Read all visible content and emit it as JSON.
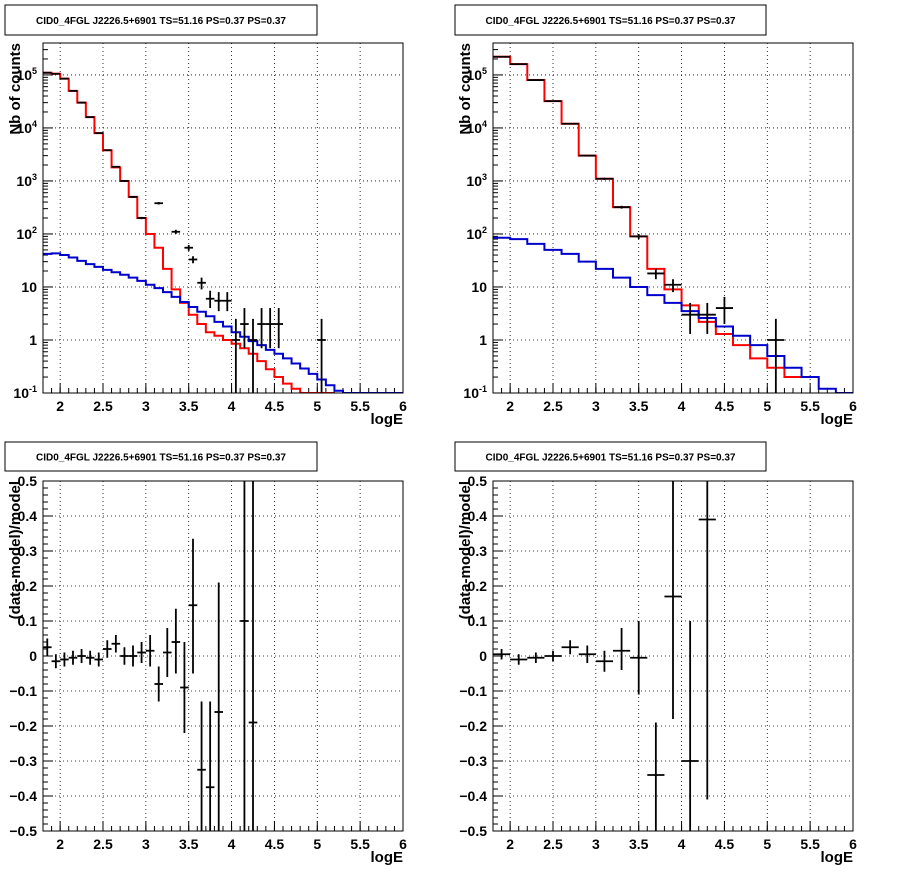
{
  "chart_data": [
    {
      "id": "top-left",
      "type": "histogram",
      "title": "CID0_4FGL J2226.5+6901 TS=51.16 PS=0.37 PS=0.37",
      "xlabel": "logE",
      "ylabel": "Nb of counts",
      "xlim": [
        1.8,
        6.0
      ],
      "ylim": [
        0.1,
        400000
      ],
      "yscale": "log",
      "grid": true,
      "x_ticks": [
        "2",
        "2.5",
        "3",
        "3.5",
        "4",
        "4.5",
        "5",
        "5.5",
        "6"
      ],
      "y_ticks": [
        "10^-1",
        "1",
        "10",
        "10^2",
        "10^3",
        "10^4",
        "10^5"
      ],
      "series": [
        {
          "color": "#ff0000",
          "style": "step",
          "edges": [
            1.8,
            1.9,
            2.0,
            2.1,
            2.2,
            2.3,
            2.4,
            2.5,
            2.6,
            2.7,
            2.8,
            2.9,
            3.0,
            3.1,
            3.2,
            3.3,
            3.4,
            3.5,
            3.6,
            3.7,
            3.8,
            3.9,
            4.0,
            4.1,
            4.2,
            4.3,
            4.4,
            4.5,
            4.6,
            4.7,
            4.8,
            4.9,
            5.0,
            5.1,
            5.2
          ],
          "values": [
            110000,
            105000,
            85000,
            50000,
            30000,
            16000,
            8000,
            3800,
            1800,
            1000,
            500,
            200,
            100,
            55,
            22,
            9,
            5,
            3,
            2,
            1.4,
            1.2,
            1,
            0.85,
            0.7,
            0.55,
            0.4,
            0.28,
            0.2,
            0.15,
            0.12,
            0.1,
            0.1,
            0.1,
            0.1
          ]
        },
        {
          "color": "#0000cc",
          "style": "step",
          "edges": [
            1.8,
            1.9,
            2.0,
            2.1,
            2.2,
            2.3,
            2.4,
            2.5,
            2.6,
            2.7,
            2.8,
            2.9,
            3.0,
            3.1,
            3.2,
            3.3,
            3.4,
            3.5,
            3.6,
            3.7,
            3.8,
            3.9,
            4.0,
            4.1,
            4.2,
            4.3,
            4.4,
            4.5,
            4.6,
            4.7,
            4.8,
            4.9,
            5.0,
            5.1,
            5.2,
            5.3,
            5.4,
            5.5,
            5.6,
            5.7,
            5.8,
            5.9,
            6.0
          ],
          "values": [
            42,
            43,
            40,
            36,
            31,
            27,
            24,
            21,
            19,
            17,
            15,
            13,
            11,
            9.5,
            8,
            6.5,
            5.2,
            4.2,
            3.4,
            2.8,
            2.2,
            1.8,
            1.4,
            1.15,
            0.95,
            0.8,
            0.65,
            0.55,
            0.45,
            0.36,
            0.29,
            0.23,
            0.18,
            0.14,
            0.11,
            0.1,
            0.1,
            0.1,
            0.1,
            0.1,
            0.1,
            0.1
          ]
        }
      ],
      "points": [
        {
          "x": 1.85,
          "y": 110000,
          "hw": 0.05,
          "ylo": 109000,
          "yhi": 111000
        },
        {
          "x": 1.95,
          "y": 105000,
          "hw": 0.05,
          "ylo": 104000,
          "yhi": 106000
        },
        {
          "x": 2.05,
          "y": 85000,
          "hw": 0.05,
          "ylo": 84000,
          "yhi": 86000
        },
        {
          "x": 2.15,
          "y": 50000,
          "hw": 0.05,
          "ylo": 49500,
          "yhi": 50500
        },
        {
          "x": 2.25,
          "y": 30000,
          "hw": 0.05,
          "ylo": 29500,
          "yhi": 30500
        },
        {
          "x": 2.35,
          "y": 16000,
          "hw": 0.05,
          "ylo": 15800,
          "yhi": 16200
        },
        {
          "x": 2.45,
          "y": 8000,
          "hw": 0.05,
          "ylo": 7900,
          "yhi": 8100
        },
        {
          "x": 2.55,
          "y": 3800,
          "hw": 0.05,
          "ylo": 3700,
          "yhi": 3900
        },
        {
          "x": 2.65,
          "y": 1850,
          "hw": 0.05,
          "ylo": 1800,
          "yhi": 1900
        },
        {
          "x": 2.75,
          "y": 1000,
          "hw": 0.05,
          "ylo": 970,
          "yhi": 1030
        },
        {
          "x": 2.85,
          "y": 500,
          "hw": 0.05,
          "ylo": 480,
          "yhi": 520
        },
        {
          "x": 2.95,
          "y": 200,
          "hw": 0.05,
          "ylo": 190,
          "yhi": 210
        },
        {
          "x": 3.15,
          "y": 380,
          "hw": 0.05,
          "ylo": 360,
          "yhi": 400
        },
        {
          "x": 3.35,
          "y": 110,
          "hw": 0.05,
          "ylo": 100,
          "yhi": 120
        },
        {
          "x": 3.5,
          "y": 55,
          "hw": 0.05,
          "ylo": 48,
          "yhi": 62
        },
        {
          "x": 3.55,
          "y": 33,
          "hw": 0.05,
          "ylo": 28,
          "yhi": 38
        },
        {
          "x": 3.65,
          "y": 12,
          "hw": 0.05,
          "ylo": 9,
          "yhi": 15
        },
        {
          "x": 3.75,
          "y": 6,
          "hw": 0.05,
          "ylo": 4,
          "yhi": 8.5
        },
        {
          "x": 3.85,
          "y": 5.5,
          "hw": 0.05,
          "ylo": 3.5,
          "yhi": 8
        },
        {
          "x": 3.95,
          "y": 5.5,
          "hw": 0.05,
          "ylo": 3.5,
          "yhi": 8
        },
        {
          "x": 4.05,
          "y": 1,
          "hw": 0.05,
          "ylo": 0.1,
          "yhi": 2.5
        },
        {
          "x": 4.15,
          "y": 2,
          "hw": 0.05,
          "ylo": 0.7,
          "yhi": 4
        },
        {
          "x": 4.25,
          "y": 1,
          "hw": 0.05,
          "ylo": 0.1,
          "yhi": 2.5
        },
        {
          "x": 4.35,
          "y": 2,
          "hw": 0.05,
          "ylo": 0.7,
          "yhi": 4
        },
        {
          "x": 4.45,
          "y": 2,
          "hw": 0.05,
          "ylo": 0.7,
          "yhi": 4
        },
        {
          "x": 4.55,
          "y": 2,
          "hw": 0.05,
          "ylo": 0.7,
          "yhi": 4
        },
        {
          "x": 5.05,
          "y": 1,
          "hw": 0.05,
          "ylo": 0.1,
          "yhi": 2.5
        }
      ]
    },
    {
      "id": "top-right",
      "type": "histogram",
      "title": "CID0_4FGL J2226.5+6901 TS=51.16 PS=0.37 PS=0.37",
      "xlabel": "logE",
      "ylabel": "Nb of counts",
      "xlim": [
        1.8,
        6.0
      ],
      "ylim": [
        0.1,
        400000
      ],
      "yscale": "log",
      "grid": true,
      "x_ticks": [
        "2",
        "2.5",
        "3",
        "3.5",
        "4",
        "4.5",
        "5",
        "5.5",
        "6"
      ],
      "y_ticks": [
        "10^-1",
        "1",
        "10",
        "10^2",
        "10^3",
        "10^4",
        "10^5"
      ],
      "series": [
        {
          "color": "#ff0000",
          "style": "step",
          "edges": [
            1.8,
            2.0,
            2.2,
            2.4,
            2.6,
            2.8,
            3.0,
            3.2,
            3.4,
            3.6,
            3.8,
            4.0,
            4.2,
            4.4,
            4.6,
            4.8,
            5.0,
            5.2,
            5.4
          ],
          "values": [
            220000,
            160000,
            80000,
            32000,
            12000,
            3000,
            1100,
            320,
            90,
            22,
            9,
            4.5,
            2.2,
            1.3,
            0.8,
            0.45,
            0.3,
            0.2
          ]
        },
        {
          "color": "#0000cc",
          "style": "step",
          "edges": [
            1.8,
            2.0,
            2.2,
            2.4,
            2.6,
            2.8,
            3.0,
            3.2,
            3.4,
            3.6,
            3.8,
            4.0,
            4.2,
            4.4,
            4.6,
            4.8,
            5.0,
            5.2,
            5.4,
            5.6,
            5.8,
            6.0
          ],
          "values": [
            85,
            80,
            65,
            50,
            42,
            30,
            22,
            15,
            10,
            7,
            5,
            3.5,
            2.6,
            1.8,
            1.2,
            0.8,
            0.5,
            0.3,
            0.2,
            0.12,
            0.1
          ]
        }
      ],
      "points": [
        {
          "x": 1.9,
          "y": 220000,
          "hw": 0.1,
          "ylo": 218000,
          "yhi": 222000
        },
        {
          "x": 2.1,
          "y": 160000,
          "hw": 0.1,
          "ylo": 158000,
          "yhi": 162000
        },
        {
          "x": 2.3,
          "y": 80000,
          "hw": 0.1,
          "ylo": 79000,
          "yhi": 81000
        },
        {
          "x": 2.5,
          "y": 32000,
          "hw": 0.1,
          "ylo": 31500,
          "yhi": 32500
        },
        {
          "x": 2.7,
          "y": 12000,
          "hw": 0.1,
          "ylo": 11800,
          "yhi": 12200
        },
        {
          "x": 2.9,
          "y": 3000,
          "hw": 0.1,
          "ylo": 2900,
          "yhi": 3100
        },
        {
          "x": 3.1,
          "y": 1100,
          "hw": 0.1,
          "ylo": 1050,
          "yhi": 1150
        },
        {
          "x": 3.3,
          "y": 320,
          "hw": 0.1,
          "ylo": 300,
          "yhi": 340
        },
        {
          "x": 3.5,
          "y": 90,
          "hw": 0.1,
          "ylo": 80,
          "yhi": 100
        },
        {
          "x": 3.7,
          "y": 18,
          "hw": 0.1,
          "ylo": 14,
          "yhi": 22
        },
        {
          "x": 3.9,
          "y": 11,
          "hw": 0.1,
          "ylo": 8,
          "yhi": 14
        },
        {
          "x": 4.1,
          "y": 3,
          "hw": 0.1,
          "ylo": 1.3,
          "yhi": 5
        },
        {
          "x": 4.3,
          "y": 3,
          "hw": 0.1,
          "ylo": 1.3,
          "yhi": 5
        },
        {
          "x": 4.5,
          "y": 4,
          "hw": 0.1,
          "ylo": 2,
          "yhi": 6.5
        },
        {
          "x": 5.1,
          "y": 1,
          "hw": 0.1,
          "ylo": 0.1,
          "yhi": 2.5
        }
      ]
    },
    {
      "id": "bottom-left",
      "type": "scatter",
      "title": "CID0_4FGL J2226.5+6901 TS=51.16 PS=0.37 PS=0.37",
      "xlabel": "logE",
      "ylabel": "(data-model)/model",
      "xlim": [
        1.8,
        6.0
      ],
      "ylim": [
        -0.5,
        0.5
      ],
      "yscale": "linear",
      "grid": true,
      "x_ticks": [
        "2",
        "2.5",
        "3",
        "3.5",
        "4",
        "4.5",
        "5",
        "5.5",
        "6"
      ],
      "y_ticks": [
        "−0.5",
        "−0.4",
        "−0.3",
        "−0.2",
        "−0.1",
        "0",
        "0.1",
        "0.2",
        "0.3",
        "0.4",
        "0.5"
      ],
      "points": [
        {
          "x": 1.85,
          "y": 0.025,
          "hw": 0.05,
          "ylo": 0.0,
          "yhi": 0.05
        },
        {
          "x": 1.95,
          "y": -0.015,
          "hw": 0.05,
          "ylo": -0.035,
          "yhi": 0.005
        },
        {
          "x": 2.05,
          "y": -0.01,
          "hw": 0.05,
          "ylo": -0.03,
          "yhi": 0.01
        },
        {
          "x": 2.15,
          "y": -0.005,
          "hw": 0.05,
          "ylo": -0.025,
          "yhi": 0.015
        },
        {
          "x": 2.25,
          "y": 0.0,
          "hw": 0.05,
          "ylo": -0.02,
          "yhi": 0.02
        },
        {
          "x": 2.35,
          "y": -0.005,
          "hw": 0.05,
          "ylo": -0.025,
          "yhi": 0.015
        },
        {
          "x": 2.45,
          "y": -0.01,
          "hw": 0.05,
          "ylo": -0.03,
          "yhi": 0.01
        },
        {
          "x": 2.55,
          "y": 0.02,
          "hw": 0.05,
          "ylo": -0.005,
          "yhi": 0.045
        },
        {
          "x": 2.65,
          "y": 0.035,
          "hw": 0.05,
          "ylo": 0.01,
          "yhi": 0.06
        },
        {
          "x": 2.75,
          "y": 0.0,
          "hw": 0.05,
          "ylo": -0.025,
          "yhi": 0.025
        },
        {
          "x": 2.85,
          "y": 0.0,
          "hw": 0.05,
          "ylo": -0.03,
          "yhi": 0.03
        },
        {
          "x": 2.95,
          "y": 0.01,
          "hw": 0.05,
          "ylo": -0.02,
          "yhi": 0.04
        },
        {
          "x": 3.05,
          "y": 0.015,
          "hw": 0.05,
          "ylo": -0.03,
          "yhi": 0.06
        },
        {
          "x": 3.15,
          "y": -0.08,
          "hw": 0.05,
          "ylo": -0.13,
          "yhi": -0.03
        },
        {
          "x": 3.25,
          "y": 0.01,
          "hw": 0.05,
          "ylo": -0.06,
          "yhi": 0.08
        },
        {
          "x": 3.35,
          "y": 0.04,
          "hw": 0.05,
          "ylo": -0.05,
          "yhi": 0.135
        },
        {
          "x": 3.45,
          "y": -0.09,
          "hw": 0.05,
          "ylo": -0.22,
          "yhi": 0.04
        },
        {
          "x": 3.55,
          "y": 0.145,
          "hw": 0.05,
          "ylo": -0.05,
          "yhi": 0.335
        },
        {
          "x": 3.65,
          "y": -0.325,
          "hw": 0.05,
          "ylo": -0.5,
          "yhi": -0.13
        },
        {
          "x": 3.75,
          "y": -0.375,
          "hw": 0.05,
          "ylo": -0.5,
          "yhi": -0.13
        },
        {
          "x": 3.85,
          "y": -0.16,
          "hw": 0.05,
          "ylo": -0.5,
          "yhi": 0.21
        },
        {
          "x": 4.15,
          "y": 0.1,
          "hw": 0.05,
          "ylo": -0.5,
          "yhi": 0.5
        },
        {
          "x": 4.25,
          "y": -0.19,
          "hw": 0.05,
          "ylo": -0.5,
          "yhi": 0.5
        }
      ]
    },
    {
      "id": "bottom-right",
      "type": "scatter",
      "title": "CID0_4FGL J2226.5+6901 TS=51.16 PS=0.37 PS=0.37",
      "xlabel": "logE",
      "ylabel": "(data-model)/model",
      "xlim": [
        1.8,
        6.0
      ],
      "ylim": [
        -0.5,
        0.5
      ],
      "yscale": "linear",
      "grid": true,
      "x_ticks": [
        "2",
        "2.5",
        "3",
        "3.5",
        "4",
        "4.5",
        "5",
        "5.5",
        "6"
      ],
      "y_ticks": [
        "−0.5",
        "−0.4",
        "−0.3",
        "−0.2",
        "−0.1",
        "0",
        "0.1",
        "0.2",
        "0.3",
        "0.4",
        "0.5"
      ],
      "points": [
        {
          "x": 1.9,
          "y": 0.005,
          "hw": 0.1,
          "ylo": -0.01,
          "yhi": 0.02
        },
        {
          "x": 2.1,
          "y": -0.01,
          "hw": 0.1,
          "ylo": -0.025,
          "yhi": 0.005
        },
        {
          "x": 2.3,
          "y": -0.005,
          "hw": 0.1,
          "ylo": -0.02,
          "yhi": 0.01
        },
        {
          "x": 2.5,
          "y": 0.0,
          "hw": 0.1,
          "ylo": -0.015,
          "yhi": 0.015
        },
        {
          "x": 2.7,
          "y": 0.025,
          "hw": 0.1,
          "ylo": 0.005,
          "yhi": 0.045
        },
        {
          "x": 2.9,
          "y": 0.005,
          "hw": 0.1,
          "ylo": -0.02,
          "yhi": 0.03
        },
        {
          "x": 3.1,
          "y": -0.015,
          "hw": 0.1,
          "ylo": -0.045,
          "yhi": 0.015
        },
        {
          "x": 3.3,
          "y": 0.015,
          "hw": 0.1,
          "ylo": -0.04,
          "yhi": 0.08
        },
        {
          "x": 3.5,
          "y": -0.005,
          "hw": 0.1,
          "ylo": -0.11,
          "yhi": 0.1
        },
        {
          "x": 3.7,
          "y": -0.34,
          "hw": 0.1,
          "ylo": -0.5,
          "yhi": -0.19
        },
        {
          "x": 3.9,
          "y": 0.17,
          "hw": 0.1,
          "ylo": -0.18,
          "yhi": 0.5
        },
        {
          "x": 4.1,
          "y": -0.3,
          "hw": 0.1,
          "ylo": -0.5,
          "yhi": 0.1
        },
        {
          "x": 4.3,
          "y": 0.39,
          "hw": 0.1,
          "ylo": -0.41,
          "yhi": 0.5
        }
      ]
    }
  ]
}
